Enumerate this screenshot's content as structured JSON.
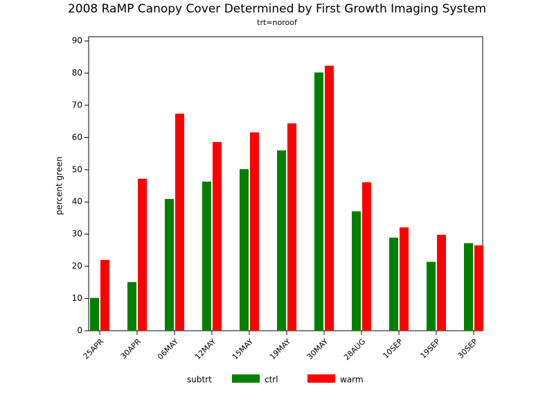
{
  "chart_data": {
    "type": "bar",
    "title": "2008 RaMP Canopy Cover Determined by First Growth Imaging System",
    "subtitle": "trt=noroof",
    "y_label": "percent green",
    "legend_title": "subtrt",
    "categories": [
      "25APR",
      "30APR",
      "06MAY",
      "12MAY",
      "15MAY",
      "19MAY",
      "30MAY",
      "28AUG",
      "10SEP",
      "19SEP",
      "30SEP"
    ],
    "series": [
      {
        "name": "ctrl",
        "color": "#008000",
        "values": [
          10.2,
          15.1,
          40.9,
          46.3,
          50.2,
          56.0,
          80.2,
          37.1,
          28.9,
          21.4,
          27.2
        ]
      },
      {
        "name": "warm",
        "color": "#ff0000",
        "values": [
          22.0,
          47.2,
          67.4,
          58.6,
          61.6,
          64.4,
          82.3,
          46.1,
          32.1,
          29.8,
          26.5
        ]
      }
    ],
    "ylim": [
      0,
      90
    ],
    "yticks": [
      0,
      10,
      20,
      30,
      40,
      50,
      60,
      70,
      80,
      90
    ],
    "grid": false
  }
}
